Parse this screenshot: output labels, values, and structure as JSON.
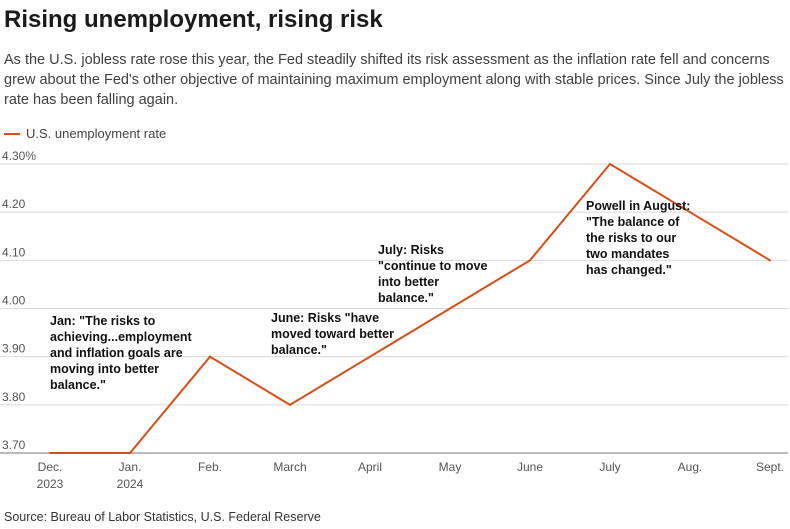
{
  "header": {
    "title": "Rising unemployment, rising risk",
    "subtitle": "As the U.S. jobless rate rose this year, the Fed steadily shifted its risk assessment as the inflation rate fell and concerns grew about the Fed's other objective of maintaining maximum employment along with stable prices. Since July the jobless rate has been falling again."
  },
  "legend": {
    "label": "U.S. unemployment rate"
  },
  "source": "Source: Bureau of Labor Statistics, U.S. Federal Reserve",
  "colors": {
    "series": "#d64f17",
    "grid": "#d9d9d9",
    "axis_text": "#555555",
    "annotation": "#111111"
  },
  "chart_data": {
    "type": "line",
    "title": "",
    "xlabel": "",
    "ylabel": "",
    "categories": [
      [
        "Dec.",
        "2023"
      ],
      [
        "Jan.",
        "2024"
      ],
      [
        "Feb."
      ],
      [
        "March"
      ],
      [
        "April"
      ],
      [
        "May"
      ],
      [
        "June"
      ],
      [
        "July"
      ],
      [
        "Aug."
      ],
      [
        "Sept."
      ]
    ],
    "series": [
      {
        "name": "U.S. unemployment rate",
        "values": [
          3.7,
          3.7,
          3.9,
          3.8,
          3.9,
          4.0,
          4.1,
          4.3,
          4.2,
          4.1
        ]
      }
    ],
    "ylim": [
      3.7,
      4.3
    ],
    "yticks": [
      {
        "value": 4.3,
        "label": "4.30%"
      },
      {
        "value": 4.2,
        "label": "4.20"
      },
      {
        "value": 4.1,
        "label": "4.10"
      },
      {
        "value": 4.0,
        "label": "4.00"
      },
      {
        "value": 3.9,
        "label": "3.90"
      },
      {
        "value": 3.8,
        "label": "3.80"
      },
      {
        "value": 3.7,
        "label": "3.70"
      }
    ],
    "grid": true,
    "annotations": [
      {
        "name": "annotation-jan",
        "lines": [
          "Jan: \"The risks to",
          "achieving...employment",
          "and inflation goals are",
          "moving into better",
          "balance.\""
        ]
      },
      {
        "name": "annotation-june",
        "lines": [
          "June: Risks \"have",
          "moved toward better",
          "balance.\""
        ]
      },
      {
        "name": "annotation-july",
        "lines": [
          "July: Risks",
          "\"continue to move",
          "into better",
          "balance.\""
        ]
      },
      {
        "name": "annotation-powell-august",
        "lines": [
          "Powell in August:",
          "\"The balance of",
          "the risks to our",
          "two mandates",
          "has changed.\""
        ]
      }
    ]
  }
}
